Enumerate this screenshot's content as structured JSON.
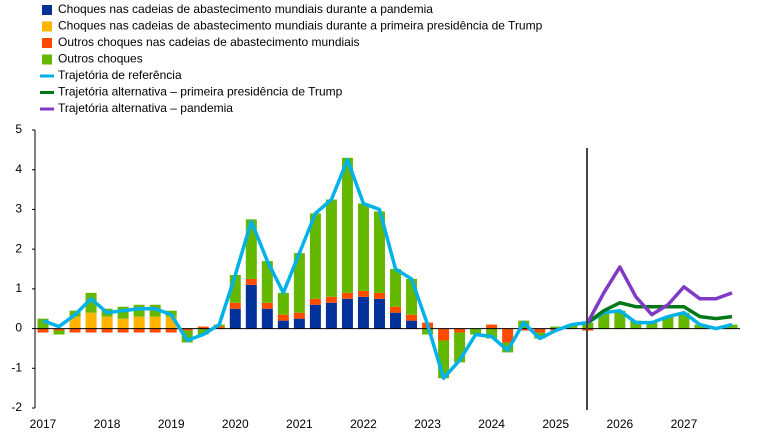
{
  "chart_data": {
    "type": "bar",
    "categories": [
      "2017",
      null,
      null,
      null,
      "2018",
      null,
      null,
      null,
      "2019",
      null,
      null,
      null,
      "2020",
      null,
      null,
      null,
      "2021",
      null,
      null,
      null,
      "2022",
      null,
      null,
      null,
      "2023",
      null,
      null,
      null,
      "2024",
      null,
      null,
      null,
      "2025",
      null,
      null,
      null,
      "2026",
      null,
      null,
      null,
      "2027",
      null,
      null,
      null
    ],
    "ylim": [
      -2,
      5
    ],
    "yticks": [
      -2,
      -1,
      0,
      1,
      2,
      3,
      4,
      5
    ],
    "series": [
      {
        "name": "Choques nas cadeias de abastecimento mundiais durante a pandemia",
        "type": "bar",
        "color": "#003299",
        "values": [
          0,
          0,
          0,
          0,
          0,
          0,
          0,
          0,
          0,
          0,
          0,
          0,
          0.5,
          1.1,
          0.5,
          0.2,
          0.25,
          0.6,
          0.65,
          0.75,
          0.8,
          0.75,
          0.4,
          0.2,
          0,
          0,
          0,
          0,
          0,
          0,
          0,
          0,
          0,
          0,
          0,
          0,
          0,
          0,
          0,
          0,
          0,
          0,
          0,
          0
        ]
      },
      {
        "name": "Choques nas cadeias de abastecimento mundiais durante a primeira presidência de Trump",
        "type": "bar",
        "color": "#ffb400",
        "values": [
          0,
          0,
          0.3,
          0.4,
          0.3,
          0.25,
          0.3,
          0.3,
          0.3,
          0,
          0,
          0,
          0,
          0,
          0,
          0,
          0,
          0,
          0,
          0,
          0,
          0,
          0,
          0,
          0,
          0,
          0,
          0,
          0,
          0,
          0,
          0,
          0,
          0,
          0,
          0,
          0,
          0,
          0,
          0,
          0,
          0,
          0,
          0
        ]
      },
      {
        "name": "Outros choques nas cadeias de abastecimento mundiais",
        "type": "bar",
        "color": "#ff4b00",
        "values": [
          -0.1,
          -0.05,
          -0.1,
          -0.1,
          -0.1,
          -0.1,
          -0.1,
          -0.1,
          -0.1,
          -0.05,
          0.05,
          0.05,
          0.15,
          0.15,
          0.15,
          0.15,
          0.15,
          0.15,
          0.15,
          0.15,
          0.15,
          0.15,
          0.15,
          0.15,
          0.15,
          -0.3,
          -0.1,
          0,
          0.1,
          -0.35,
          -0.05,
          -0.1,
          -0.05,
          0,
          -0.05,
          0,
          0,
          0,
          0,
          0,
          0,
          0,
          0,
          0
        ]
      },
      {
        "name": "Outros choques",
        "type": "bar",
        "color": "#65b800",
        "values": [
          0.25,
          -0.1,
          0.15,
          0.5,
          0.2,
          0.3,
          0.3,
          0.3,
          0.15,
          -0.3,
          -0.15,
          0.05,
          0.7,
          1.5,
          1.05,
          0.55,
          1.5,
          2.15,
          2.45,
          3.4,
          2.2,
          2.05,
          0.95,
          0.9,
          -0.15,
          -0.95,
          -0.75,
          -0.15,
          -0.25,
          -0.25,
          0.2,
          -0.15,
          0.05,
          0.1,
          0.15,
          0.4,
          0.45,
          0.2,
          0.15,
          0.3,
          0.4,
          0.1,
          0,
          0.1
        ]
      },
      {
        "name": "Trajetória de referência",
        "type": "line",
        "color": "#00b1ea",
        "values": [
          0.2,
          0.05,
          0.35,
          0.75,
          0.4,
          0.45,
          0.5,
          0.5,
          0.35,
          -0.3,
          -0.15,
          0.1,
          1.35,
          2.7,
          1.7,
          0.9,
          1.9,
          2.9,
          3.25,
          4.25,
          3.15,
          3.0,
          1.5,
          1.25,
          0.1,
          -1.25,
          -0.8,
          -0.15,
          -0.2,
          -0.55,
          0.15,
          -0.25,
          -0.05,
          0.1,
          0.15,
          0.4,
          0.45,
          0.15,
          0.15,
          0.3,
          0.4,
          0.1,
          0,
          0.1
        ]
      },
      {
        "name": "Trajetória alternativa – primeira presidência de Trump",
        "type": "line",
        "color": "#007816",
        "values": [
          null,
          null,
          null,
          null,
          null,
          null,
          null,
          null,
          null,
          null,
          null,
          null,
          null,
          null,
          null,
          null,
          null,
          null,
          null,
          null,
          null,
          null,
          null,
          null,
          null,
          null,
          null,
          null,
          null,
          null,
          null,
          null,
          null,
          null,
          0.15,
          0.45,
          0.65,
          0.55,
          0.55,
          0.55,
          0.55,
          0.3,
          0.25,
          0.3
        ]
      },
      {
        "name": "Trajetória alternativa – pandemia",
        "type": "line",
        "color": "#8139c6",
        "values": [
          null,
          null,
          null,
          null,
          null,
          null,
          null,
          null,
          null,
          null,
          null,
          null,
          null,
          null,
          null,
          null,
          null,
          null,
          null,
          null,
          null,
          null,
          null,
          null,
          null,
          null,
          null,
          null,
          null,
          null,
          null,
          null,
          null,
          null,
          0.15,
          0.9,
          1.55,
          0.8,
          0.35,
          0.6,
          1.05,
          0.75,
          0.75,
          0.9
        ]
      }
    ]
  }
}
